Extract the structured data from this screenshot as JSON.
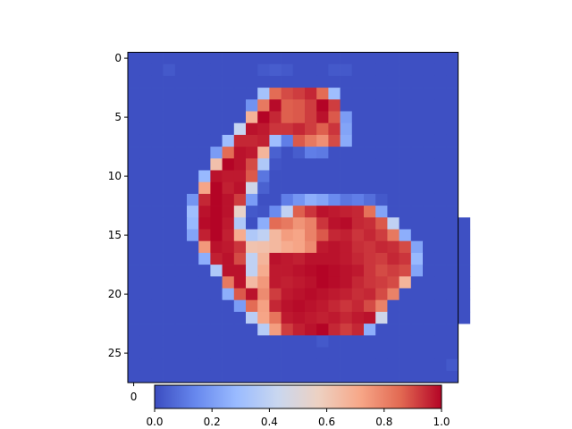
{
  "chart_data": {
    "type": "heatmap",
    "title": "",
    "xlabel": "",
    "ylabel": "",
    "rows": 28,
    "cols": 28,
    "colormap": "coolwarm",
    "colormap_colors": [
      "#3b4cc0",
      "#6788ee",
      "#9abbff",
      "#c9d7f0",
      "#edd1c2",
      "#f7a889",
      "#e26952",
      "#b40426"
    ],
    "vmin": 0.0,
    "vmax": 1.0,
    "y_ticks": [
      0,
      5,
      10,
      15,
      20,
      25
    ],
    "y_tick_labels": [
      "0",
      "5",
      "10",
      "15",
      "20",
      "25"
    ],
    "x_ticks": [
      0
    ],
    "x_tick_labels": [
      "0"
    ],
    "colorbar": {
      "orientation": "horizontal",
      "ticks": [
        0.0,
        0.2,
        0.4,
        0.6,
        0.8,
        1.0
      ],
      "tick_labels": [
        "0.0",
        "0.2",
        "0.4",
        "0.6",
        "0.8",
        "1.0"
      ]
    },
    "values": [
      [
        0.01,
        0.01,
        0.01,
        0.01,
        0.01,
        0.01,
        0.01,
        0.01,
        0.01,
        0.01,
        0.01,
        0.01,
        0.01,
        0.01,
        0.01,
        0.01,
        0.01,
        0.01,
        0.01,
        0.01,
        0.01,
        0.01,
        0.01,
        0.01,
        0.01,
        0.01,
        0.01,
        0.01
      ],
      [
        0.01,
        0.01,
        0.01,
        0.03,
        0.01,
        0.01,
        0.01,
        0.01,
        0.01,
        0.01,
        0.01,
        0.03,
        0.04,
        0.03,
        0.01,
        0.01,
        0.01,
        0.03,
        0.03,
        0.01,
        0.01,
        0.01,
        0.01,
        0.01,
        0.01,
        0.01,
        0.01,
        0.01
      ],
      [
        0.01,
        0.01,
        0.01,
        0.01,
        0.01,
        0.01,
        0.01,
        0.01,
        0.01,
        0.01,
        0.01,
        0.01,
        0.01,
        0.01,
        0.01,
        0.01,
        0.01,
        0.01,
        0.01,
        0.01,
        0.01,
        0.01,
        0.01,
        0.01,
        0.01,
        0.01,
        0.01,
        0.01
      ],
      [
        0.01,
        0.01,
        0.01,
        0.01,
        0.01,
        0.01,
        0.01,
        0.01,
        0.01,
        0.01,
        0.01,
        0.32,
        0.85,
        0.9,
        0.92,
        0.95,
        0.85,
        0.3,
        0.01,
        0.01,
        0.01,
        0.01,
        0.01,
        0.01,
        0.01,
        0.01,
        0.01,
        0.01
      ],
      [
        0.01,
        0.01,
        0.01,
        0.01,
        0.01,
        0.01,
        0.01,
        0.01,
        0.01,
        0.01,
        0.17,
        0.82,
        0.99,
        0.87,
        0.88,
        0.92,
        1.0,
        0.92,
        0.01,
        0.01,
        0.01,
        0.01,
        0.01,
        0.01,
        0.01,
        0.01,
        0.01,
        0.01
      ],
      [
        0.01,
        0.01,
        0.01,
        0.01,
        0.01,
        0.01,
        0.01,
        0.01,
        0.01,
        0.01,
        0.68,
        1.0,
        0.95,
        0.87,
        0.88,
        0.92,
        0.98,
        0.88,
        0.2,
        0.01,
        0.01,
        0.01,
        0.01,
        0.01,
        0.01,
        0.01,
        0.01,
        0.01
      ],
      [
        0.01,
        0.01,
        0.01,
        0.01,
        0.01,
        0.01,
        0.01,
        0.01,
        0.01,
        0.42,
        0.98,
        0.97,
        0.93,
        0.93,
        0.95,
        0.92,
        0.87,
        0.93,
        0.22,
        0.01,
        0.01,
        0.01,
        0.01,
        0.01,
        0.01,
        0.01,
        0.01,
        0.01
      ],
      [
        0.01,
        0.01,
        0.01,
        0.01,
        0.01,
        0.01,
        0.01,
        0.01,
        0.3,
        0.95,
        0.95,
        0.96,
        0.3,
        0.12,
        0.88,
        0.82,
        0.77,
        0.9,
        0.24,
        0.01,
        0.01,
        0.01,
        0.01,
        0.01,
        0.01,
        0.01,
        0.01,
        0.01
      ],
      [
        0.01,
        0.01,
        0.01,
        0.01,
        0.01,
        0.01,
        0.01,
        0.2,
        0.85,
        0.98,
        0.97,
        0.67,
        0.05,
        0.01,
        0.04,
        0.12,
        0.11,
        0.01,
        0.01,
        0.01,
        0.01,
        0.01,
        0.01,
        0.01,
        0.01,
        0.01,
        0.01,
        0.01
      ],
      [
        0.01,
        0.01,
        0.01,
        0.01,
        0.01,
        0.01,
        0.01,
        0.63,
        1.0,
        0.98,
        0.9,
        0.35,
        0.02,
        0.01,
        0.01,
        0.01,
        0.01,
        0.01,
        0.01,
        0.01,
        0.01,
        0.01,
        0.01,
        0.01,
        0.01,
        0.01,
        0.01,
        0.01
      ],
      [
        0.01,
        0.01,
        0.01,
        0.01,
        0.01,
        0.01,
        0.28,
        0.98,
        0.97,
        0.97,
        0.88,
        0.1,
        0.01,
        0.01,
        0.01,
        0.01,
        0.01,
        0.01,
        0.01,
        0.01,
        0.01,
        0.01,
        0.01,
        0.01,
        0.01,
        0.01,
        0.01,
        0.01
      ],
      [
        0.01,
        0.01,
        0.01,
        0.01,
        0.01,
        0.01,
        0.72,
        1.0,
        0.96,
        0.98,
        0.45,
        0.05,
        0.01,
        0.01,
        0.01,
        0.01,
        0.01,
        0.01,
        0.01,
        0.01,
        0.01,
        0.01,
        0.01,
        0.01,
        0.01,
        0.01,
        0.01,
        0.01
      ],
      [
        0.01,
        0.01,
        0.01,
        0.01,
        0.01,
        0.18,
        0.95,
        1.0,
        0.98,
        0.92,
        0.2,
        0.01,
        0.01,
        0.12,
        0.18,
        0.25,
        0.22,
        0.15,
        0.1,
        0.12,
        0.08,
        0.03,
        0.01,
        0.01,
        0.01,
        0.01,
        0.01,
        0.01
      ],
      [
        0.01,
        0.01,
        0.01,
        0.01,
        0.01,
        0.3,
        0.98,
        1.0,
        0.98,
        0.55,
        0.03,
        0.02,
        0.15,
        0.4,
        0.87,
        0.93,
        0.98,
        0.97,
        0.96,
        0.95,
        0.84,
        0.22,
        0.01,
        0.01,
        0.01,
        0.01,
        0.01,
        0.01
      ],
      [
        0.01,
        0.01,
        0.01,
        0.01,
        0.01,
        0.28,
        0.99,
        1.0,
        0.97,
        0.35,
        0.01,
        0.25,
        0.85,
        0.82,
        0.76,
        0.8,
        0.93,
        0.98,
        0.99,
        0.95,
        0.94,
        0.88,
        0.4,
        0.01,
        0.01,
        0.01,
        0.01,
        0.01,
        0.01
      ],
      [
        0.01,
        0.01,
        0.01,
        0.01,
        0.01,
        0.22,
        0.96,
        1.0,
        0.96,
        0.7,
        0.35,
        0.4,
        0.66,
        0.74,
        0.72,
        0.8,
        0.88,
        0.95,
        0.96,
        0.93,
        0.95,
        0.92,
        0.82,
        0.25,
        0.01,
        0.01,
        0.01,
        0.01,
        0.01
      ],
      [
        0.01,
        0.01,
        0.01,
        0.01,
        0.01,
        0.01,
        0.75,
        0.98,
        0.97,
        0.93,
        0.62,
        0.63,
        0.66,
        0.7,
        0.72,
        0.78,
        0.97,
        0.98,
        0.97,
        0.94,
        0.93,
        0.95,
        0.94,
        0.9,
        0.22,
        0.01,
        0.01,
        0.01,
        0.01
      ],
      [
        0.01,
        0.01,
        0.01,
        0.01,
        0.01,
        0.01,
        0.25,
        0.96,
        0.98,
        0.9,
        0.4,
        0.67,
        0.98,
        0.97,
        0.96,
        0.98,
        0.98,
        0.98,
        0.97,
        0.95,
        0.93,
        0.92,
        0.95,
        0.93,
        0.28,
        0.01,
        0.01,
        0.01,
        0.01
      ],
      [
        0.01,
        0.01,
        0.01,
        0.01,
        0.01,
        0.01,
        0.01,
        0.35,
        0.98,
        0.98,
        0.4,
        0.7,
        0.97,
        0.97,
        0.98,
        0.99,
        1.0,
        0.99,
        0.98,
        0.97,
        0.93,
        0.9,
        0.92,
        0.9,
        0.22,
        0.01,
        0.01,
        0.01,
        0.01
      ],
      [
        0.01,
        0.01,
        0.01,
        0.01,
        0.01,
        0.01,
        0.01,
        0.01,
        0.82,
        0.98,
        0.65,
        0.75,
        0.97,
        0.96,
        0.97,
        0.98,
        1.0,
        0.99,
        0.98,
        0.95,
        0.93,
        0.92,
        0.9,
        0.67,
        0.01,
        0.01,
        0.01,
        0.01,
        0.01
      ],
      [
        0.01,
        0.01,
        0.01,
        0.01,
        0.01,
        0.01,
        0.01,
        0.01,
        0.25,
        0.88,
        0.98,
        0.78,
        0.92,
        0.97,
        0.98,
        0.99,
        0.98,
        0.97,
        0.96,
        0.94,
        0.95,
        0.9,
        0.8,
        0.01,
        0.01,
        0.01,
        0.01,
        0.01,
        0.01
      ],
      [
        0.01,
        0.01,
        0.01,
        0.01,
        0.01,
        0.01,
        0.01,
        0.01,
        0.01,
        0.2,
        0.85,
        0.73,
        0.95,
        0.98,
        0.99,
        0.98,
        0.97,
        0.95,
        0.93,
        0.95,
        0.9,
        0.8,
        0.01,
        0.01,
        0.01,
        0.01,
        0.01,
        0.01,
        0.01
      ],
      [
        0.01,
        0.01,
        0.01,
        0.01,
        0.01,
        0.01,
        0.01,
        0.01,
        0.01,
        0.01,
        0.38,
        0.72,
        0.83,
        0.97,
        0.98,
        0.97,
        0.96,
        0.97,
        0.95,
        0.97,
        0.98,
        0.45,
        0.01,
        0.01,
        0.01,
        0.01,
        0.01,
        0.01,
        0.01
      ],
      [
        0.01,
        0.01,
        0.01,
        0.01,
        0.01,
        0.01,
        0.01,
        0.01,
        0.01,
        0.01,
        0.01,
        0.37,
        0.74,
        0.92,
        0.96,
        0.98,
        1.0,
        0.95,
        0.92,
        0.95,
        0.25,
        0.01,
        0.01,
        0.01,
        0.01,
        0.01,
        0.01,
        0.01
      ],
      [
        0.01,
        0.01,
        0.01,
        0.01,
        0.01,
        0.01,
        0.01,
        0.01,
        0.01,
        0.01,
        0.01,
        0.01,
        0.01,
        0.01,
        0.01,
        0.01,
        0.03,
        0.01,
        0.01,
        0.01,
        0.01,
        0.01,
        0.01,
        0.01,
        0.01,
        0.01,
        0.01,
        0.01
      ],
      [
        0.01,
        0.01,
        0.01,
        0.01,
        0.01,
        0.01,
        0.01,
        0.01,
        0.01,
        0.01,
        0.01,
        0.01,
        0.01,
        0.01,
        0.01,
        0.01,
        0.01,
        0.01,
        0.01,
        0.01,
        0.01,
        0.01,
        0.01,
        0.01,
        0.01,
        0.01,
        0.01,
        0.01
      ],
      [
        0.01,
        0.01,
        0.01,
        0.01,
        0.01,
        0.01,
        0.01,
        0.01,
        0.01,
        0.01,
        0.01,
        0.01,
        0.01,
        0.01,
        0.01,
        0.01,
        0.01,
        0.01,
        0.01,
        0.01,
        0.01,
        0.01,
        0.01,
        0.01,
        0.01,
        0.01,
        0.01,
        0.03
      ],
      [
        0.01,
        0.01,
        0.01,
        0.01,
        0.01,
        0.01,
        0.01,
        0.01,
        0.01,
        0.01,
        0.01,
        0.01,
        0.01,
        0.01,
        0.01,
        0.01,
        0.01,
        0.01,
        0.01,
        0.01,
        0.01,
        0.01,
        0.01,
        0.01,
        0.01,
        0.01,
        0.01,
        0.01
      ]
    ]
  }
}
